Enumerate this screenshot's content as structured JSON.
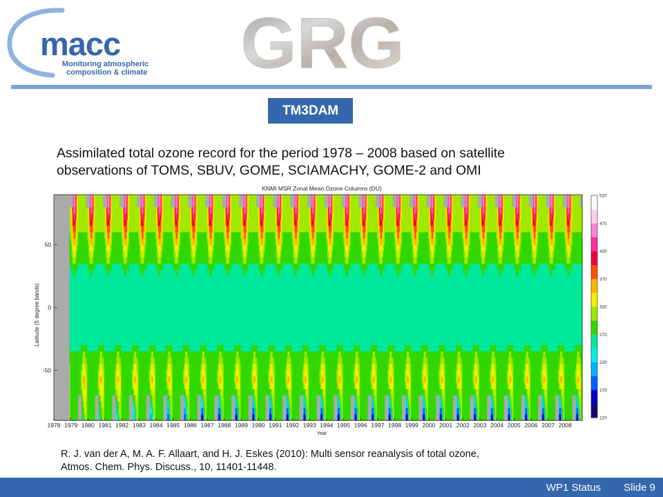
{
  "header": {
    "macc_logo": {
      "name": "macc",
      "tagline_line1": "Monitoring atmospheric",
      "tagline_line2": "composition & climate",
      "color": "#3467ad",
      "swoosh_color": "#8fb3df"
    },
    "grg_logo": {
      "text": "GRG"
    }
  },
  "badge": {
    "label": "TM3DAM",
    "color": "#3467ad"
  },
  "description": {
    "line1": "Assimilated total ozone record for the period 1978 – 2008 based on satellite",
    "line2": "observations of TOMS, SBUV, GOME, SCIAMACHY, GOME-2 and OMI"
  },
  "chart_data": {
    "type": "heatmap",
    "title": "KNMI MSR Zonal Mean Ozone Columns (DU)",
    "xlabel": "Year",
    "ylabel": "Latitude (5 degree bands)",
    "x_ticks": [
      "1978",
      "1979",
      "1980",
      "1981",
      "1982",
      "1983",
      "1984",
      "1985",
      "1986",
      "1987",
      "1988",
      "1989",
      "1990",
      "1991",
      "1992",
      "1993",
      "1994",
      "1995",
      "1996",
      "1997",
      "1998",
      "1999",
      "2000",
      "2001",
      "2002",
      "2003",
      "2004",
      "2005",
      "2006",
      "2007",
      "2008"
    ],
    "xlim": [
      1978,
      2009
    ],
    "y_ticks": [
      50,
      0,
      -50
    ],
    "ylim": [
      -90,
      90
    ],
    "colorbar": {
      "ticks": [
        120,
        170,
        220,
        270,
        320,
        370,
        420,
        470,
        520
      ],
      "range": [
        120,
        520
      ]
    },
    "colors": {
      "missing": "#aaaaaa",
      "scale": [
        "#1a0078",
        "#0000c8",
        "#0060ff",
        "#00b4ff",
        "#00f0e6",
        "#00e89a",
        "#30d800",
        "#a0e800",
        "#f0f000",
        "#ffb400",
        "#ff5000",
        "#f00040",
        "#ff30a0",
        "#ff80d0",
        "#ffd0ee",
        "#ffffff"
      ]
    },
    "missing_periods": [
      [
        1978.0,
        1978.9
      ]
    ]
  },
  "reference": {
    "line1": "R. J. van der A, M. A. F. Allaart, and H. J. Eskes (2010): Multi sensor reanalysis of total ozone,",
    "line2": "Atmos. Chem. Phys. Discuss., 10, 11401-11448."
  },
  "footer": {
    "status": "WP1 Status",
    "slide": "Slide 9",
    "color": "#3467ad"
  }
}
